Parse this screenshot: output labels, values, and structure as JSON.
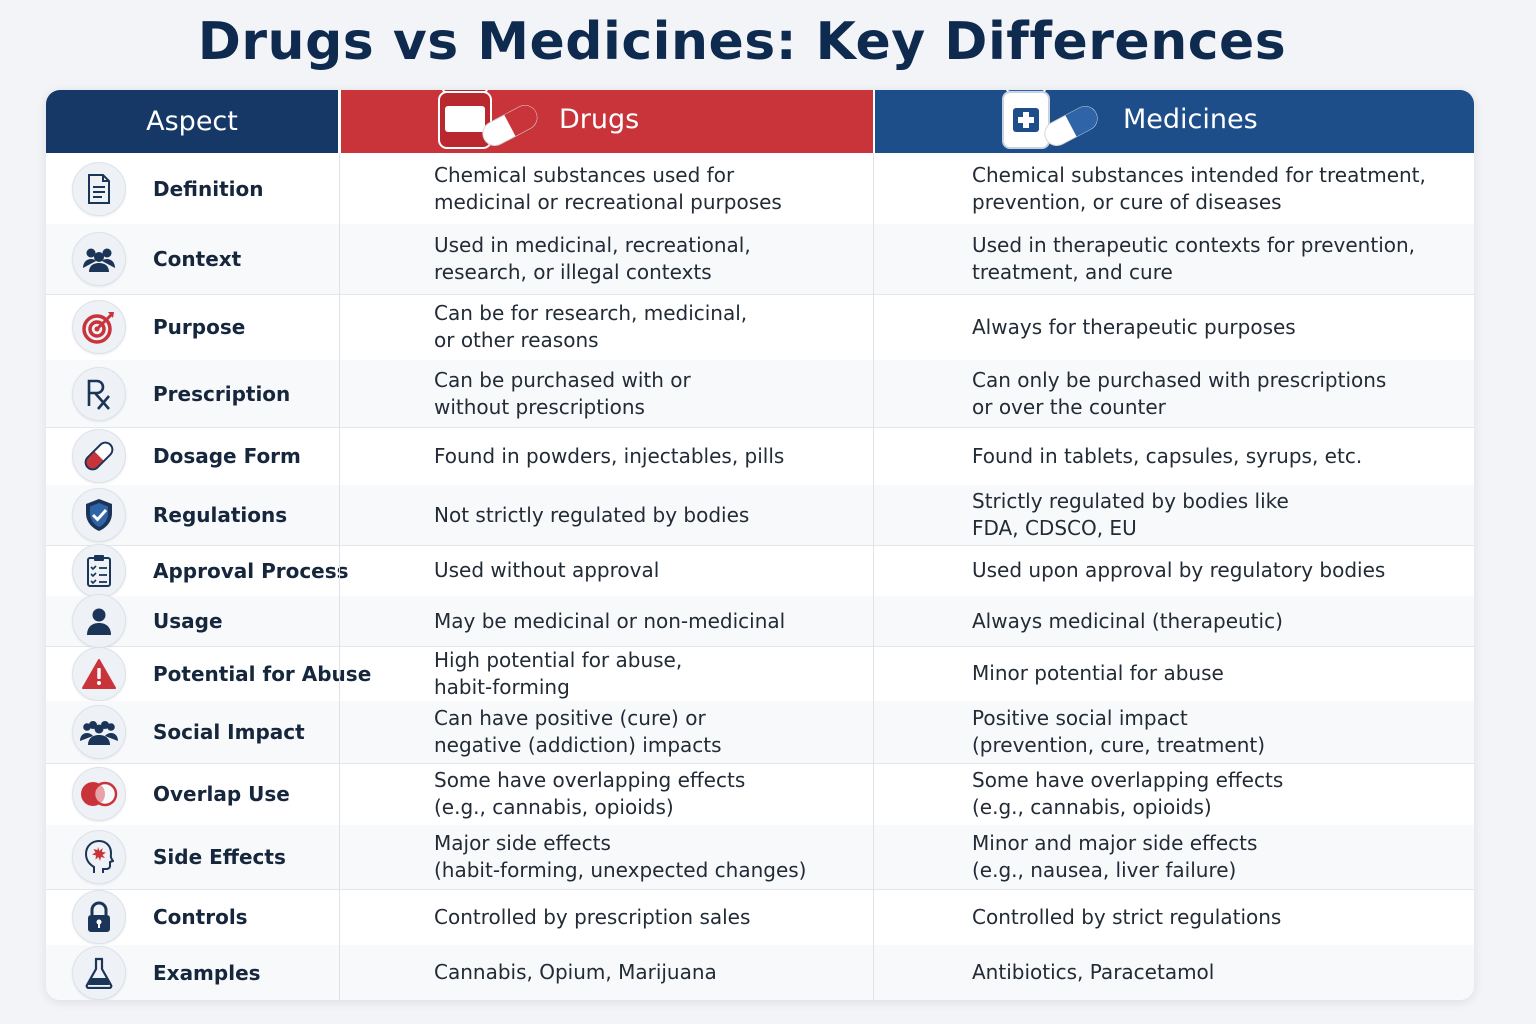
{
  "title": "Drugs vs Medicines: Key Differences",
  "header": {
    "aspect": "Aspect",
    "drugs": "Drugs",
    "medicines": "Medicines"
  },
  "colors": {
    "navy": "#163866",
    "drugs_red": "#c9343a",
    "medicines_blue": "#1d4e89"
  },
  "rows": [
    {
      "aspect": "Definition",
      "icon": "document-icon",
      "drugs": "Chemical substances used for\nmedicinal or recreational purposes",
      "medicines": "Chemical substances intended for treatment,\nprevention, or cure of diseases"
    },
    {
      "aspect": "Context",
      "icon": "people-group-icon",
      "drugs": "Used in medicinal, recreational,\nresearch, or illegal contexts",
      "medicines": "Used in therapeutic contexts for prevention,\ntreatment, and cure"
    },
    {
      "aspect": "Purpose",
      "icon": "target-icon",
      "drugs": "Can be for research, medicinal,\nor other reasons",
      "medicines": "Always for therapeutic purposes"
    },
    {
      "aspect": "Prescription",
      "icon": "rx-icon",
      "drugs": "Can be purchased with or\nwithout prescriptions",
      "medicines": "Can only be purchased with prescriptions\nor over the counter"
    },
    {
      "aspect": "Dosage Form",
      "icon": "capsule-icon",
      "drugs": "Found in powders, injectables, pills",
      "medicines": "Found in tablets, capsules, syrups, etc."
    },
    {
      "aspect": "Regulations",
      "icon": "shield-check-icon",
      "drugs": "Not strictly regulated by bodies",
      "medicines": "Strictly regulated by bodies like\nFDA, CDSCO, EU"
    },
    {
      "aspect": "Approval Process",
      "icon": "clipboard-checklist-icon",
      "drugs": "Used without approval",
      "medicines": "Used upon approval by regulatory bodies"
    },
    {
      "aspect": "Usage",
      "icon": "person-icon",
      "drugs": "May be medicinal or non-medicinal",
      "medicines": "Always medicinal (therapeutic)"
    },
    {
      "aspect": "Potential for Abuse",
      "icon": "warning-icon",
      "drugs": "High potential for abuse,\nhabit-forming",
      "medicines": "Minor potential for abuse"
    },
    {
      "aspect": "Social Impact",
      "icon": "community-icon",
      "drugs": "Can have positive (cure) or\nnegative (addiction) impacts",
      "medicines": "Positive social impact\n(prevention, cure, treatment)"
    },
    {
      "aspect": "Overlap Use",
      "icon": "overlap-circles-icon",
      "drugs": "Some have overlapping effects\n(e.g., cannabis, opioids)",
      "medicines": "Some have overlapping effects\n(e.g., cannabis, opioids)"
    },
    {
      "aspect": "Side Effects",
      "icon": "head-burst-icon",
      "drugs": "Major side effects\n(habit-forming, unexpected changes)",
      "medicines": "Minor and major side effects\n(e.g., nausea, liver failure)"
    },
    {
      "aspect": "Controls",
      "icon": "padlock-icon",
      "drugs": "Controlled by prescription sales",
      "medicines": "Controlled by strict regulations"
    },
    {
      "aspect": "Examples",
      "icon": "flask-icon",
      "drugs": "Cannabis, Opium, Marijuana",
      "medicines": "Antibiotics, Paracetamol"
    }
  ]
}
